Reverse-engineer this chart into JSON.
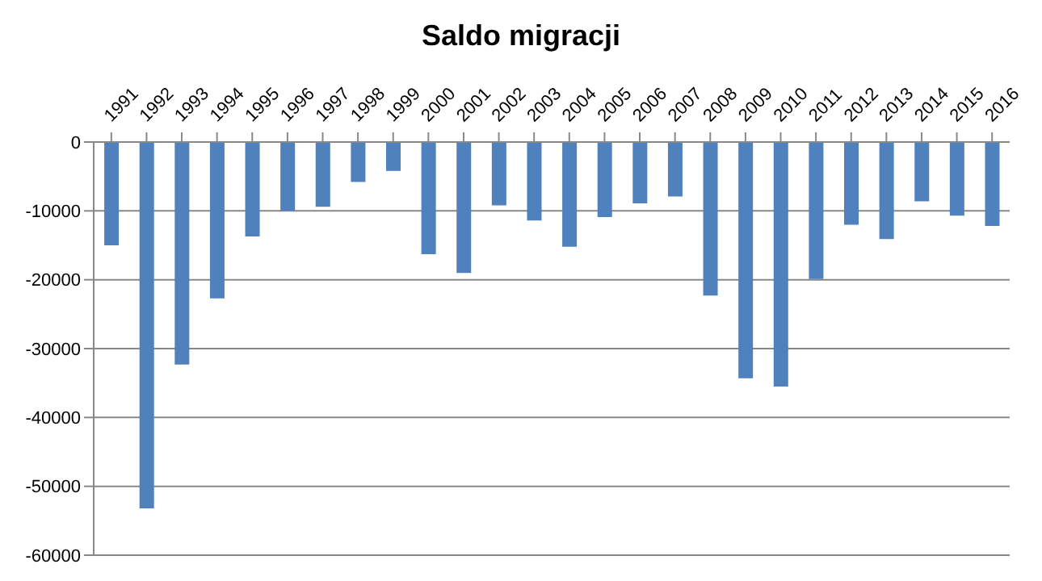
{
  "chart_data": {
    "type": "bar",
    "title": "Saldo migracji",
    "categories": [
      "1991",
      "1992",
      "1993",
      "1994",
      "1995",
      "1996",
      "1997",
      "1998",
      "1999",
      "2000",
      "2001",
      "2002",
      "2003",
      "2004",
      "2005",
      "2006",
      "2007",
      "2008",
      "2009",
      "2010",
      "2011",
      "2012",
      "2013",
      "2014",
      "2015",
      "2016"
    ],
    "values": [
      -15000,
      -53200,
      -32300,
      -22700,
      -13700,
      -10000,
      -9400,
      -5800,
      -4200,
      -16300,
      -19000,
      -9200,
      -11400,
      -15200,
      -10900,
      -8900,
      -7900,
      -22300,
      -34300,
      -35500,
      -19900,
      -12000,
      -14100,
      -8600,
      -10700,
      -12200
    ],
    "color": "#4f81bd",
    "ylim": [
      -60000,
      0
    ],
    "yticks": [
      -60000,
      -50000,
      -40000,
      -30000,
      -20000,
      -10000,
      0
    ],
    "grid": "y"
  }
}
